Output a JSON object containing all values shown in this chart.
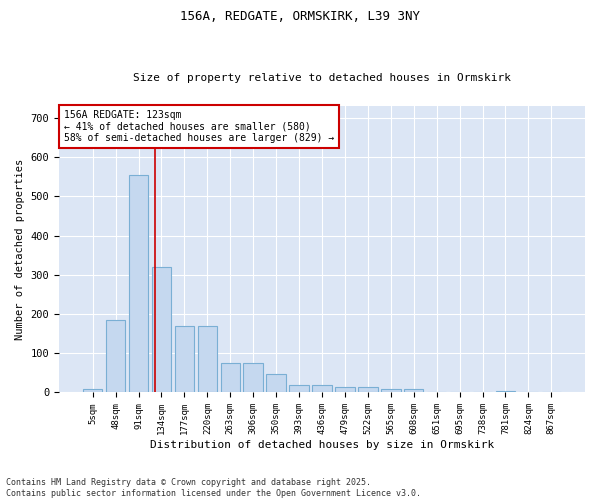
{
  "title1": "156A, REDGATE, ORMSKIRK, L39 3NY",
  "title2": "Size of property relative to detached houses in Ormskirk",
  "xlabel": "Distribution of detached houses by size in Ormskirk",
  "ylabel": "Number of detached properties",
  "bar_color": "#c5d8ef",
  "bar_edge_color": "#7aafd4",
  "bg_color": "#dce6f5",
  "grid_color": "#ffffff",
  "categories": [
    "5sqm",
    "48sqm",
    "91sqm",
    "134sqm",
    "177sqm",
    "220sqm",
    "263sqm",
    "306sqm",
    "350sqm",
    "393sqm",
    "436sqm",
    "479sqm",
    "522sqm",
    "565sqm",
    "608sqm",
    "651sqm",
    "695sqm",
    "738sqm",
    "781sqm",
    "824sqm",
    "867sqm"
  ],
  "values": [
    8,
    185,
    555,
    320,
    170,
    170,
    75,
    75,
    47,
    20,
    20,
    13,
    13,
    10,
    8,
    0,
    0,
    0,
    4,
    0,
    0
  ],
  "vline_x": 2.7,
  "vline_color": "#cc0000",
  "annotation_text": "156A REDGATE: 123sqm\n← 41% of detached houses are smaller (580)\n58% of semi-detached houses are larger (829) →",
  "annotation_box_color": "#cc0000",
  "footnote": "Contains HM Land Registry data © Crown copyright and database right 2025.\nContains public sector information licensed under the Open Government Licence v3.0.",
  "ylim": [
    0,
    730
  ],
  "yticks": [
    0,
    100,
    200,
    300,
    400,
    500,
    600,
    700
  ]
}
